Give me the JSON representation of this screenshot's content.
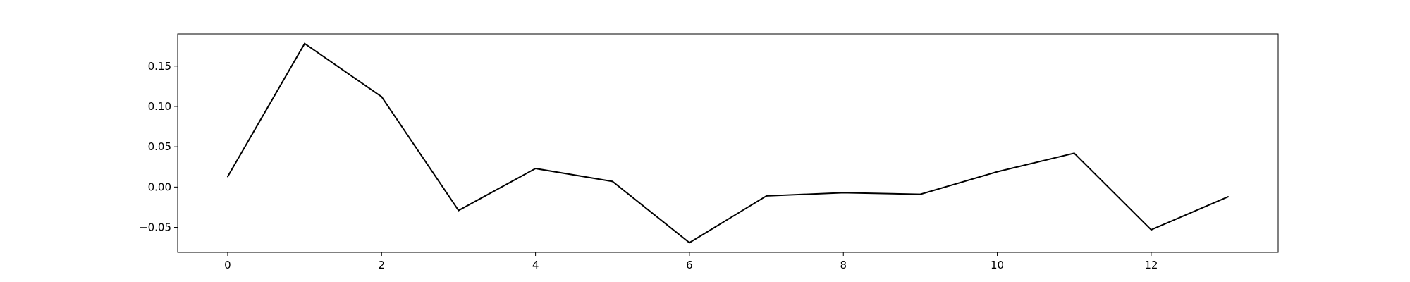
{
  "chart_data": {
    "type": "line",
    "title": "",
    "xlabel": "",
    "ylabel": "",
    "xlim": [
      -0.65,
      13.65
    ],
    "ylim": [
      -0.081,
      0.19
    ],
    "grid": false,
    "legend": "none",
    "line_color": "#000000",
    "x_ticks": [
      0,
      2,
      4,
      6,
      8,
      10,
      12
    ],
    "y_ticks": [
      -0.05,
      0.0,
      0.05,
      0.1,
      0.15
    ],
    "x_tick_labels": [
      "0",
      "2",
      "4",
      "6",
      "8",
      "10",
      "12"
    ],
    "y_tick_labels": [
      "−0.05",
      "0.00",
      "0.05",
      "0.10",
      "0.15"
    ],
    "series": [
      {
        "x": [
          0,
          1,
          2,
          3,
          4,
          5,
          6,
          7,
          8,
          9,
          10,
          11,
          12,
          13
        ],
        "values": [
          0.013,
          0.178,
          0.112,
          -0.029,
          0.023,
          0.007,
          -0.069,
          -0.011,
          -0.007,
          -0.009,
          0.019,
          0.042,
          -0.053,
          -0.012
        ]
      }
    ]
  }
}
